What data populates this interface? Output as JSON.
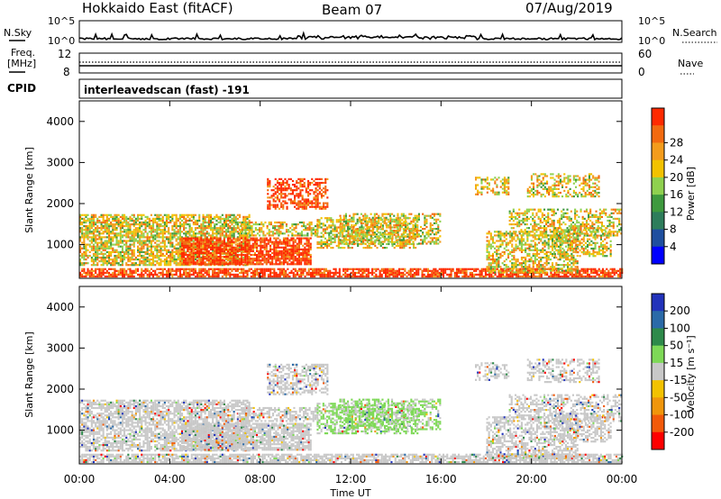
{
  "header": {
    "station": "Hokkaido East (fitACF)",
    "beam": "Beam 07",
    "date": "07/Aug/2019"
  },
  "noise_panel": {
    "left_label": "N.Sky",
    "right_label": "N.Search",
    "ticks": [
      "10^5",
      "10^0"
    ],
    "right_ticks": [
      "10^5",
      "10^0"
    ]
  },
  "freq_panel": {
    "left_label_1": "Freq.",
    "left_label_2": "[MHz]",
    "left_ticks": [
      "12",
      "8"
    ],
    "right_label": "Nave",
    "right_ticks": [
      "60",
      "0"
    ],
    "cpid_label": "CPID",
    "cpid_value": "interleavedscan (fast) -191"
  },
  "chart_data": [
    {
      "type": "heatmap",
      "name": "power",
      "ylabel": "Slant Range [km]",
      "ylim": [
        180,
        4500
      ],
      "yticks": [
        "1000",
        "2000",
        "3000",
        "4000"
      ],
      "colorbar_label": "Power [dB]",
      "colorbar_ticks": [
        "4",
        "8",
        "12",
        "16",
        "20",
        "24",
        "28"
      ],
      "colors": [
        "#0000ff",
        "#1f4f9f",
        "#2e7d5b",
        "#3e9a3e",
        "#8fd14f",
        "#f2c200",
        "#f39c1c",
        "#f26a10",
        "#ff2a00"
      ]
    },
    {
      "type": "heatmap",
      "name": "velocity",
      "ylabel": "Slant Range [km]",
      "ylim": [
        180,
        4500
      ],
      "yticks": [
        "1000",
        "2000",
        "3000",
        "4000"
      ],
      "xlabel": "Time UT",
      "xticks": [
        "00:00",
        "04:00",
        "08:00",
        "12:00",
        "16:00",
        "20:00",
        "00:00"
      ],
      "colorbar_label": "Velocity [m s⁻¹]",
      "colorbar_ticks": [
        "200",
        "100",
        "50",
        "15",
        "-15",
        "-50",
        "-100",
        "-200"
      ],
      "colors": [
        "#2233bb",
        "#2b6aa8",
        "#2e8a4a",
        "#7ed957",
        "#c8c8c8",
        "#f2c200",
        "#f0960c",
        "#f25a0a",
        "#ff0000"
      ]
    }
  ]
}
